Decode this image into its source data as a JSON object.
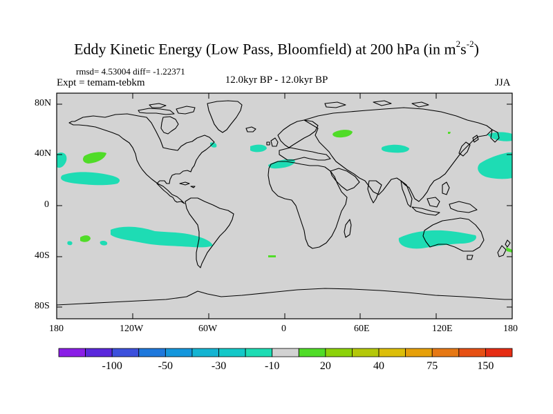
{
  "title": {
    "prefix": "Eddy Kinetic Energy (Low Pass, Bloomfield) at 200 hPa (in m",
    "sup1": "2",
    "mid": "s",
    "sup2": "-2",
    "suffix": ")"
  },
  "stats": "rmsd= 4.53004 diff= -1.22371",
  "expt": "Expt = temam-tebkm",
  "center_label": "12.0kyr BP - 12.0kyr BP",
  "season": "JJA",
  "lat_ticks": [
    "80N",
    "40N",
    "0",
    "40S",
    "80S"
  ],
  "lon_ticks": [
    "180",
    "120W",
    "60W",
    "0",
    "60E",
    "120E",
    "180"
  ],
  "colorbar": {
    "colors": [
      "#8a1ee6",
      "#5a28dc",
      "#3c50dc",
      "#1e78dc",
      "#1496dc",
      "#14b4d2",
      "#14c8c8",
      "#1edcb4",
      "#d2d2d2",
      "#50dc28",
      "#8cd20a",
      "#b4c80a",
      "#dcbe0a",
      "#e6a00a",
      "#e67814",
      "#e65014",
      "#e62d14"
    ],
    "labels": [
      "-100",
      "-50",
      "-30",
      "-10",
      "20",
      "40",
      "75",
      "150"
    ]
  },
  "palette": {
    "ocean_land": "#d3d3d3",
    "negative_patch": "#1edcb4",
    "positive_patch": "#50dc28"
  }
}
